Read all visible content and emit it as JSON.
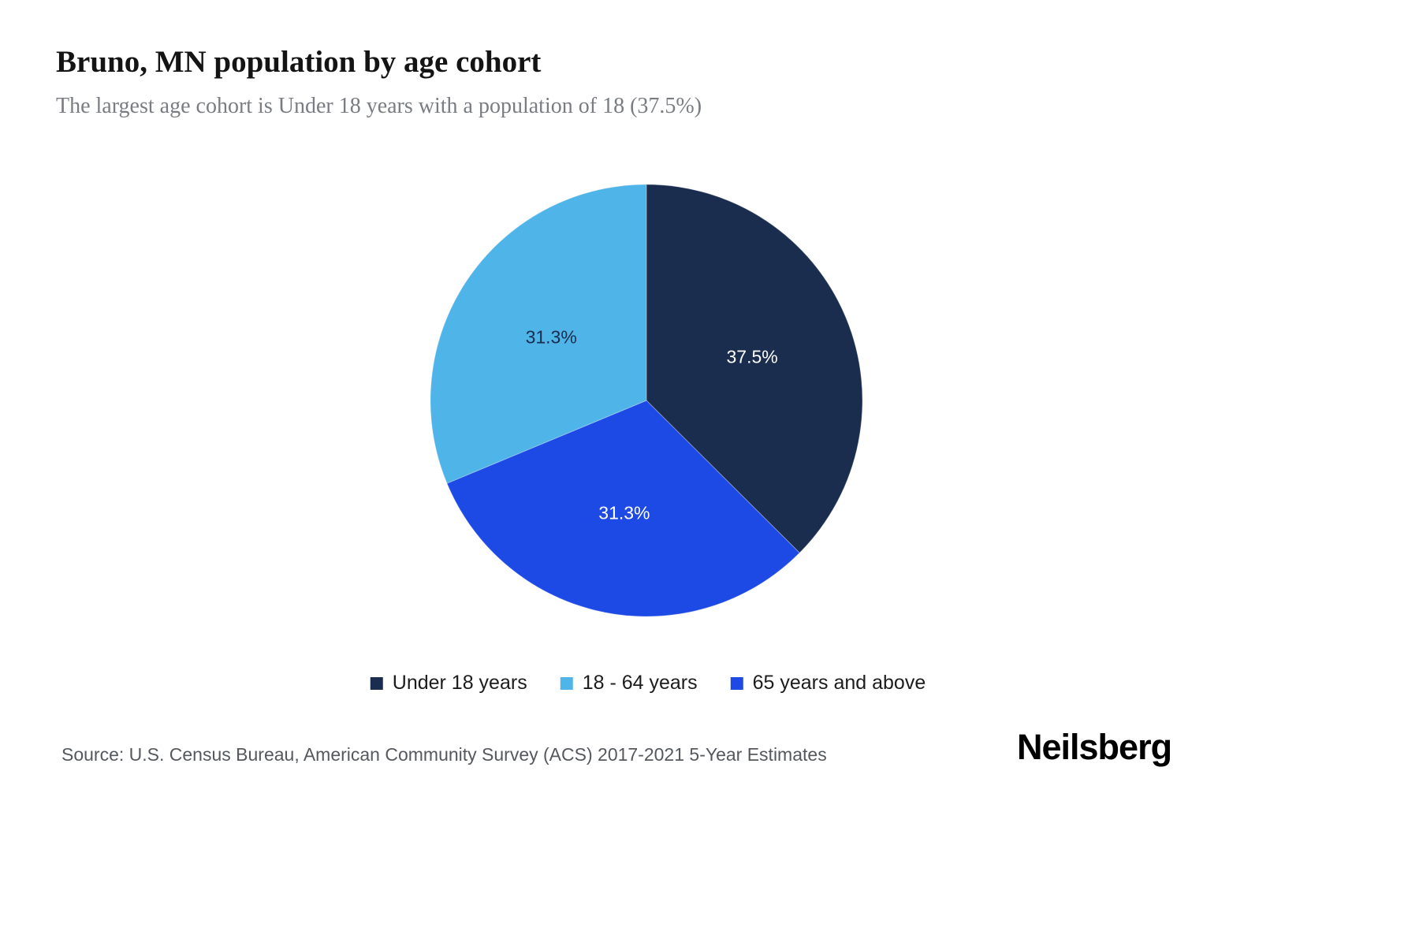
{
  "header": {
    "title": "Bruno, MN population by age cohort",
    "subtitle": "The largest age cohort is Under 18 years with a population of 18 (37.5%)"
  },
  "chart_data": {
    "type": "pie",
    "title": "Bruno, MN population by age cohort",
    "start_angle_deg": 0,
    "direction": "clockwise",
    "legend_position": "bottom",
    "slices": [
      {
        "label": "Under 18 years",
        "value": 37.5,
        "display": "37.5%",
        "color": "#1a2d4e",
        "text_color": "#ffffff"
      },
      {
        "label": "65 years and above",
        "value": 31.3,
        "display": "31.3%",
        "color": "#1d49e5",
        "text_color": "#ffffff"
      },
      {
        "label": "18 - 64 years",
        "value": 31.3,
        "display": "31.3%",
        "color": "#4fb4e8",
        "text_color": "#1a2d4e"
      }
    ]
  },
  "legend": {
    "items": [
      {
        "label": "Under 18 years",
        "color": "#1a2d4e"
      },
      {
        "label": "18 - 64 years",
        "color": "#4fb4e8"
      },
      {
        "label": "65 years and above",
        "color": "#1d49e5"
      }
    ]
  },
  "footer": {
    "source": "Source: U.S. Census Bureau, American Community Survey (ACS) 2017-2021 5-Year Estimates",
    "brand": "Neilsberg"
  }
}
